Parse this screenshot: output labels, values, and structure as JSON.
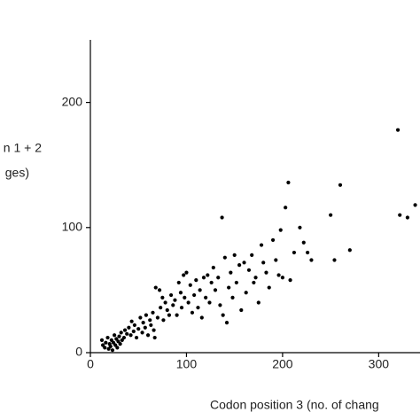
{
  "chart_data": {
    "type": "scatter",
    "ylabel_lines": [
      "n 1 + 2",
      "ges)"
    ],
    "xlabel": "Codon position 3 (no. of chang",
    "xlim": [
      0,
      343
    ],
    "ylim": [
      0,
      250
    ],
    "xticks": [
      0,
      100,
      200,
      300
    ],
    "yticks": [
      0,
      100,
      200
    ],
    "color": "#000000",
    "x": [
      12,
      13,
      15,
      16,
      18,
      19,
      20,
      21,
      22,
      23,
      24,
      25,
      26,
      27,
      28,
      29,
      30,
      31,
      32,
      33,
      35,
      36,
      38,
      40,
      42,
      43,
      45,
      46,
      48,
      50,
      52,
      54,
      55,
      57,
      58,
      60,
      62,
      63,
      65,
      66,
      67,
      68,
      70,
      72,
      73,
      75,
      76,
      78,
      80,
      82,
      84,
      86,
      88,
      90,
      92,
      94,
      95,
      97,
      98,
      100,
      102,
      104,
      106,
      108,
      110,
      112,
      114,
      116,
      118,
      120,
      122,
      124,
      126,
      128,
      130,
      133,
      135,
      137,
      138,
      140,
      142,
      144,
      146,
      148,
      150,
      152,
      155,
      157,
      160,
      162,
      165,
      168,
      170,
      172,
      175,
      178,
      180,
      183,
      186,
      190,
      193,
      196,
      198,
      200,
      203,
      206,
      208,
      212,
      218,
      222,
      226,
      230,
      250,
      254,
      260,
      270,
      320,
      322,
      330,
      338
    ],
    "y": [
      10,
      6,
      4,
      8,
      12,
      3,
      7,
      5,
      10,
      2,
      8,
      14,
      6,
      11,
      4,
      9,
      13,
      7,
      16,
      10,
      12,
      18,
      15,
      20,
      14,
      25,
      17,
      22,
      12,
      19,
      28,
      16,
      24,
      20,
      30,
      14,
      26,
      22,
      32,
      18,
      12,
      52,
      28,
      50,
      36,
      44,
      26,
      40,
      34,
      30,
      46,
      38,
      42,
      30,
      56,
      48,
      36,
      62,
      44,
      64,
      40,
      54,
      32,
      46,
      58,
      36,
      50,
      28,
      60,
      44,
      62,
      40,
      56,
      68,
      50,
      60,
      38,
      108,
      30,
      76,
      24,
      52,
      64,
      44,
      78,
      56,
      70,
      34,
      72,
      48,
      66,
      78,
      56,
      60,
      40,
      86,
      72,
      64,
      52,
      90,
      74,
      62,
      98,
      60,
      116,
      136,
      58,
      80,
      100,
      88,
      80,
      74,
      110,
      74,
      134,
      82,
      178,
      110,
      108,
      118
    ]
  }
}
